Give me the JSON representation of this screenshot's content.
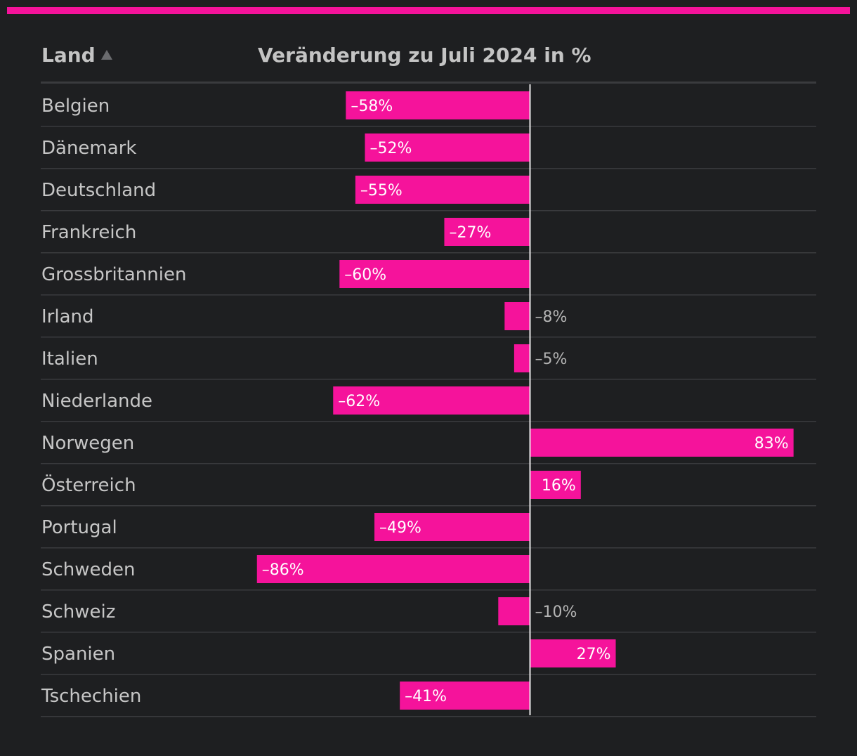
{
  "header": {
    "col_country": "Land",
    "sort_icon": "triangle-up-icon",
    "col_change": "Veränderung zu Juli 2024 in %"
  },
  "colors": {
    "accent": "#f5139b",
    "background": "#1e1f21",
    "row_divider": "#3a3b3e",
    "text": "#c6c6c6"
  },
  "chart_data": {
    "type": "bar",
    "orientation": "horizontal",
    "categories": [
      "Belgien",
      "Dänemark",
      "Deutschland",
      "Frankreich",
      "Grossbritannien",
      "Irland",
      "Italien",
      "Niederlande",
      "Norwegen",
      "Österreich",
      "Portugal",
      "Schweden",
      "Schweiz",
      "Spanien",
      "Tschechien"
    ],
    "values": [
      -58,
      -52,
      -55,
      -27,
      -60,
      -8,
      -5,
      -62,
      83,
      16,
      -49,
      -86,
      -10,
      27,
      -41
    ],
    "value_labels": [
      "–58%",
      "–52%",
      "–55%",
      "–27%",
      "–60%",
      "–8%",
      "–5%",
      "–62%",
      "83%",
      "16%",
      "–49%",
      "–86%",
      "–10%",
      "27%",
      "–41%"
    ],
    "title": "Veränderung zu Juli 2024 in %",
    "xlim": [
      -86,
      90
    ],
    "grid": false
  }
}
